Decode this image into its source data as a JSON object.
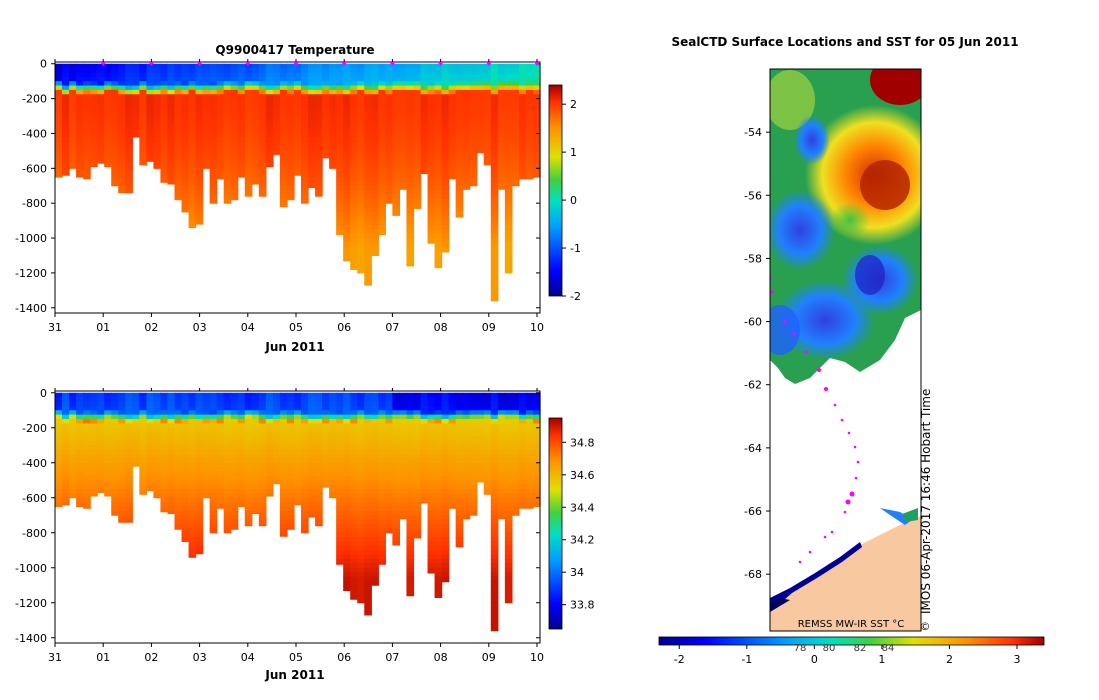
{
  "chart_data": [
    {
      "type": "heatmap",
      "title": "Q9900417  Temperature",
      "xlabel": "Jun 2011",
      "ylabel": "",
      "x_ticks": [
        "31",
        "01",
        "02",
        "03",
        "04",
        "05",
        "06",
        "07",
        "08",
        "09",
        "10"
      ],
      "x_range_days": [
        0,
        10
      ],
      "ylim": [
        -1430,
        10
      ],
      "y_ticks": [
        0,
        -200,
        -400,
        -600,
        -800,
        -1000,
        -1200,
        -1400
      ],
      "colorbar": {
        "min": -2.0,
        "max": 2.4,
        "ticks": [
          2,
          1,
          0,
          -1,
          -2
        ]
      },
      "surface_value": -1.6,
      "deep_value": 2.05,
      "profile_max_depths_m": [
        650,
        640,
        600,
        650,
        660,
        590,
        570,
        590,
        700,
        740,
        740,
        420,
        580,
        560,
        600,
        680,
        690,
        780,
        850,
        940,
        920,
        600,
        800,
        660,
        800,
        780,
        650,
        760,
        690,
        760,
        590,
        520,
        820,
        780,
        640,
        800,
        710,
        760,
        540,
        600,
        980,
        1130,
        1180,
        1200,
        1270,
        1100,
        980,
        800,
        870,
        720,
        1160,
        830,
        630,
        1030,
        1170,
        1080,
        660,
        880,
        720,
        700,
        510,
        580,
        1360,
        720,
        1200,
        700,
        660,
        660,
        650
      ]
    },
    {
      "type": "heatmap",
      "title": "",
      "xlabel": "Jun 2011",
      "ylabel": "",
      "x_ticks": [
        "31",
        "01",
        "02",
        "03",
        "04",
        "05",
        "06",
        "07",
        "08",
        "09",
        "10"
      ],
      "x_range_days": [
        0,
        10
      ],
      "ylim": [
        -1430,
        10
      ],
      "y_ticks": [
        0,
        -200,
        -400,
        -600,
        -800,
        -1000,
        -1200,
        -1400
      ],
      "colorbar": {
        "min": 33.65,
        "max": 34.95,
        "ticks": [
          "34.8",
          "34.6",
          "34.4",
          "34.2",
          "34",
          "33.8"
        ]
      },
      "surface_value": 33.75,
      "deep_value": 34.85
    },
    {
      "type": "heatmap",
      "title": "SealCTD Surface Locations and SST for 05 Jun 2011",
      "y_ticks": [
        "-54",
        "-56",
        "-58",
        "-60",
        "-62",
        "-64",
        "-66",
        "-68"
      ],
      "ylim": [
        -69.8,
        -52.0
      ],
      "source_label": "REMSS MW-IR SST °C",
      "watermark": "IMOS 06-Apr-2017 16:46 Hobart Time",
      "watermark_symbol": "©",
      "colorbar": {
        "min": -2.3,
        "max": 3.4,
        "ticks": [
          "-2",
          "-1",
          "0",
          "1",
          "2",
          "3"
        ]
      },
      "track_labels": [
        "78",
        "80",
        "82",
        "84"
      ]
    }
  ],
  "colors": {
    "land": "#f8c8a0",
    "cold": "#000090",
    "warm": "#a00000",
    "track": "#ff00ff"
  }
}
